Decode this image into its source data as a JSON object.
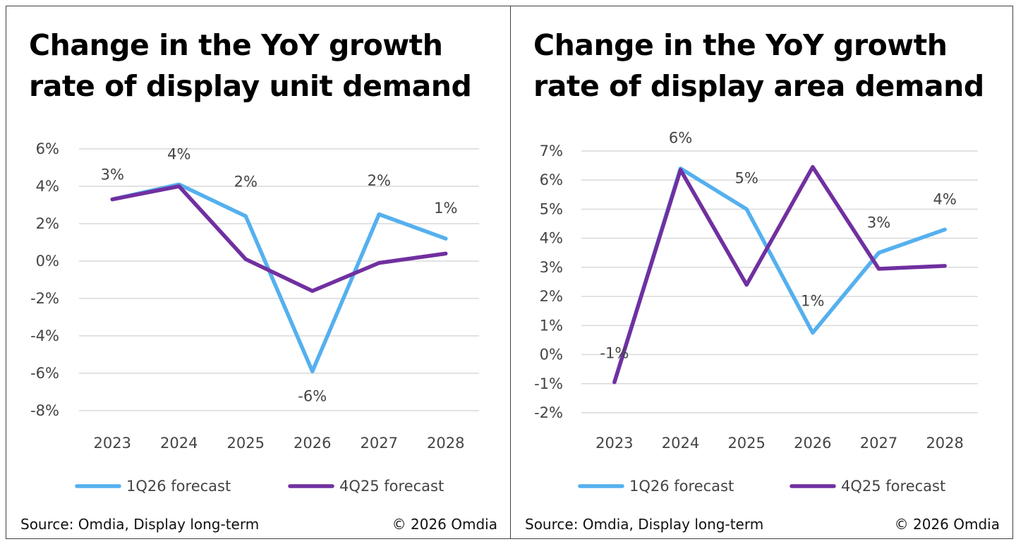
{
  "colors": {
    "series_1q26": "#55b0ee",
    "series_4q25": "#7030a0",
    "grid": "#d9d9d9",
    "text": "#404040"
  },
  "panels": [
    {
      "title": "Change in the YoY growth rate of display unit demand",
      "source": "Source: Omdia, Display long-term",
      "copyright": "© 2026 Omdia"
    },
    {
      "title": "Change in the YoY growth rate of display area demand",
      "source": "Source: Omdia, Display long-term",
      "copyright": "© 2026 Omdia"
    }
  ],
  "chart_data": [
    {
      "type": "line",
      "title": "Change in the YoY growth rate of display unit demand",
      "categories": [
        "2023",
        "2024",
        "2025",
        "2026",
        "2027",
        "2028"
      ],
      "ylim": [
        -8,
        6
      ],
      "yticks": [
        6,
        4,
        2,
        0,
        -2,
        -4,
        -6,
        -8
      ],
      "ytick_labels": [
        "6%",
        "4%",
        "2%",
        "0%",
        "-2%",
        "-4%",
        "-6%",
        "-8%"
      ],
      "grid": true,
      "legend": "bottom",
      "series": [
        {
          "name": "1Q26 forecast",
          "values": [
            3.3,
            4.1,
            2.4,
            -5.9,
            2.5,
            1.2
          ]
        },
        {
          "name": "4Q25 forecast",
          "values": [
            3.3,
            4.0,
            0.1,
            -1.6,
            -0.1,
            0.4
          ]
        }
      ],
      "data_labels": [
        "3%",
        "4%",
        "2%",
        "-6%",
        "2%",
        "1%"
      ]
    },
    {
      "type": "line",
      "title": "Change in the YoY growth rate of display area demand",
      "categories": [
        "2023",
        "2024",
        "2025",
        "2026",
        "2027",
        "2028"
      ],
      "ylim": [
        -2,
        7
      ],
      "yticks": [
        7,
        6,
        5,
        4,
        3,
        2,
        1,
        0,
        -1,
        -2
      ],
      "ytick_labels": [
        "7%",
        "6%",
        "5%",
        "4%",
        "3%",
        "2%",
        "1%",
        "0%",
        "-1%",
        "-2%"
      ],
      "grid": true,
      "legend": "bottom",
      "series": [
        {
          "name": "1Q26 forecast",
          "values": [
            -0.95,
            6.4,
            5.0,
            0.75,
            3.5,
            4.3
          ]
        },
        {
          "name": "4Q25 forecast",
          "values": [
            -0.95,
            6.35,
            2.4,
            6.45,
            2.95,
            3.05
          ]
        }
      ],
      "data_labels": [
        "-1%",
        "6%",
        "5%",
        "1%",
        "3%",
        "4%"
      ]
    }
  ]
}
